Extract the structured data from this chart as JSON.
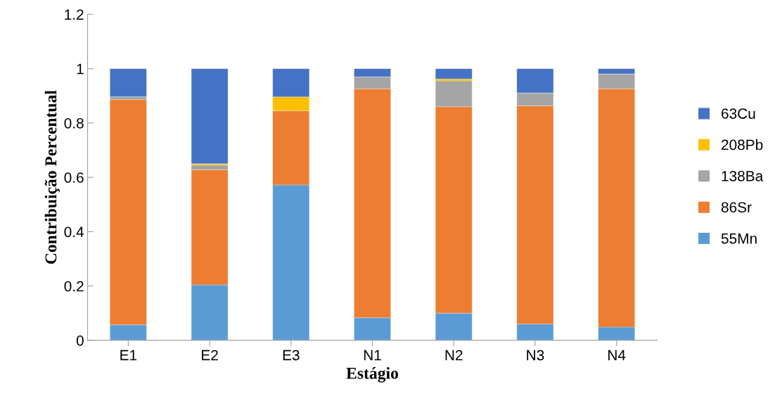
{
  "chart_data": {
    "type": "bar",
    "stacked": true,
    "xlabel": "Estágio",
    "ylabel": "Contribuição Percentual",
    "categories": [
      "E1",
      "E2",
      "E3",
      "N1",
      "N2",
      "N3",
      "N4"
    ],
    "series": [
      {
        "name": "55Mn",
        "color": "#5b9bd5",
        "values": [
          0.057,
          0.204,
          0.572,
          0.083,
          0.1,
          0.06,
          0.049
        ]
      },
      {
        "name": "86Sr",
        "color": "#ed7d31",
        "values": [
          0.829,
          0.424,
          0.273,
          0.843,
          0.76,
          0.803,
          0.877
        ]
      },
      {
        "name": "138Ba",
        "color": "#a5a5a5",
        "values": [
          0.011,
          0.017,
          0,
          0.044,
          0.095,
          0.048,
          0.055
        ]
      },
      {
        "name": "208Pb",
        "color": "#ffc000",
        "values": [
          0,
          0.005,
          0.051,
          0,
          0.007,
          0,
          0
        ]
      },
      {
        "name": "63Cu",
        "color": "#4472c4",
        "values": [
          0.103,
          0.35,
          0.104,
          0.03,
          0.038,
          0.089,
          0.019
        ]
      }
    ],
    "ylim": [
      0,
      1.2
    ],
    "yticks": [
      0,
      {
        "value": 0.2,
        "label": "0.2"
      },
      {
        "value": 0.4,
        "label": "0.4"
      },
      {
        "value": 0.6,
        "label": "0.6"
      },
      {
        "value": 0.8,
        "label": "0.8"
      },
      1,
      {
        "value": 1.2,
        "label": "1.2"
      }
    ],
    "grid": false,
    "legend": "right"
  }
}
